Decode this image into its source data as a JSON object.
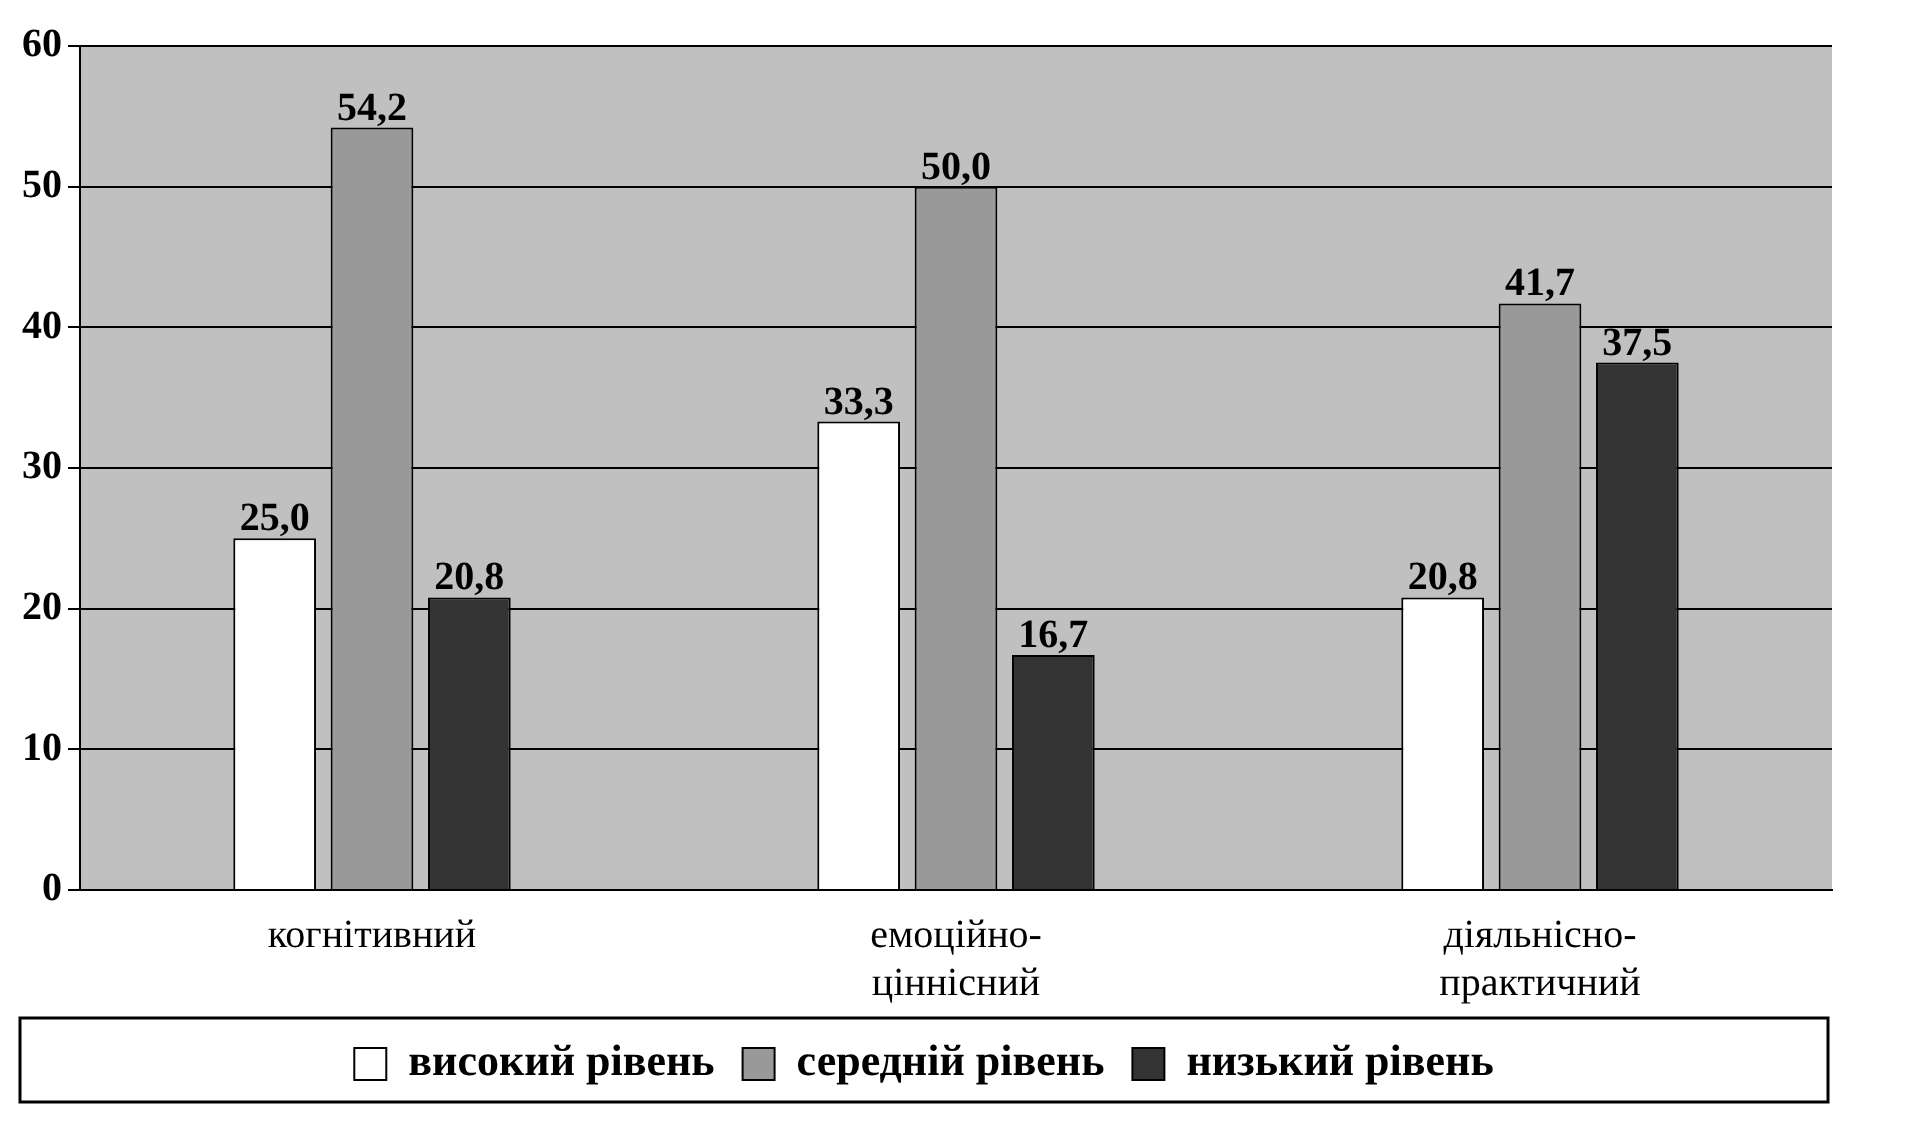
{
  "chart_data": {
    "type": "bar",
    "categories": [
      "когнітивний",
      "емоційно-ціннісний",
      "діяльнісно-практичний"
    ],
    "series": [
      {
        "name": "високий рівень",
        "color": "#ffffff",
        "values": [
          25.0,
          33.3,
          20.8
        ],
        "value_labels": [
          "25,0",
          "33,3",
          "20,8"
        ]
      },
      {
        "name": "середній рівень",
        "color": "#999999",
        "values": [
          54.2,
          50.0,
          41.7
        ],
        "value_labels": [
          "54,2",
          "50,0",
          "41,7"
        ]
      },
      {
        "name": "низький рівень",
        "color": "#333333",
        "values": [
          20.8,
          16.7,
          37.5
        ],
        "value_labels": [
          "20,8",
          "16,7",
          "37,5"
        ]
      }
    ],
    "ylim": [
      0,
      60
    ],
    "yticks": [
      0,
      10,
      20,
      30,
      40,
      50,
      60
    ],
    "grid": "y",
    "legend": "bottom"
  }
}
